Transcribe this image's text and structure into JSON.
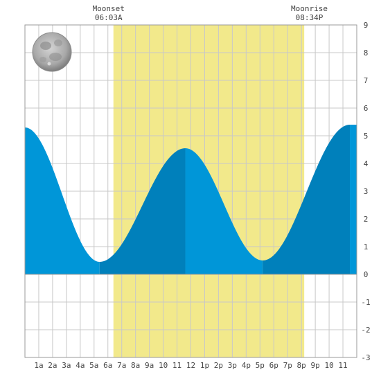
{
  "chart_data": {
    "type": "area",
    "title": "",
    "xlabel": "",
    "ylabel": "",
    "xlim": [
      0,
      24
    ],
    "ylim": [
      -3,
      9
    ],
    "y_ticks": [
      "-3",
      "-2",
      "-1",
      "0",
      "1",
      "2",
      "3",
      "4",
      "5",
      "6",
      "7",
      "8",
      "9"
    ],
    "x_ticks": [
      "1a",
      "2a",
      "3a",
      "4a",
      "5a",
      "6a",
      "7a",
      "8a",
      "9a",
      "10",
      "11",
      "12",
      "1p",
      "2p",
      "3p",
      "4p",
      "5p",
      "6p",
      "7p",
      "8p",
      "9p",
      "10",
      "11"
    ],
    "grid": true,
    "moon_phase": "full-moon",
    "daylight": {
      "start_hour": 6.4,
      "end_hour": 20.2
    },
    "events": [
      {
        "label": "Moonset",
        "time": "06:03A",
        "hour": 6.05
      },
      {
        "label": "Moonrise",
        "time": "08:34P",
        "hour": 20.57
      }
    ],
    "extrema": [
      {
        "hour": 5.4,
        "value": 0.45,
        "type": "low"
      },
      {
        "hour": 11.6,
        "value": 4.55,
        "type": "high"
      },
      {
        "hour": 17.2,
        "value": 0.5,
        "type": "low"
      },
      {
        "hour": 23.5,
        "value": 5.4,
        "type": "high"
      }
    ],
    "start_value": 5.3,
    "colors": {
      "rising": "#0080bb",
      "falling": "#0096d8",
      "daylight": "#f2e98b",
      "grid": "#c8c8c8",
      "axis_text": "#444444"
    }
  }
}
